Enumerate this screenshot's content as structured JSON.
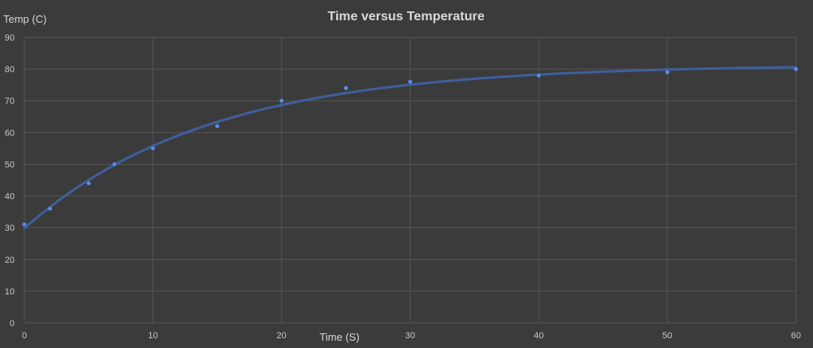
{
  "chart_data": {
    "type": "scatter",
    "title": "Time versus Temperature",
    "xlabel": "Time (S)",
    "ylabel": "Temp (C)",
    "xlim": [
      0,
      60
    ],
    "ylim": [
      0,
      90
    ],
    "x_ticks": [
      0,
      10,
      20,
      30,
      40,
      50,
      60
    ],
    "y_ticks": [
      0,
      10,
      20,
      30,
      40,
      50,
      60,
      70,
      80,
      90
    ],
    "grid": true,
    "trendline": true,
    "colors": {
      "background": "#3b3b3b",
      "grid": "#555555",
      "marker": "#5b8fe0",
      "trendline": "#3f5f9e",
      "text": "#d9d9d9"
    },
    "series": [
      {
        "name": "Temperature",
        "x": [
          0,
          2,
          5,
          7,
          10,
          15,
          20,
          25,
          30,
          40,
          50,
          60
        ],
        "y": [
          31,
          36,
          44,
          50,
          55,
          62,
          70,
          74,
          76,
          78,
          79,
          80
        ]
      }
    ]
  }
}
